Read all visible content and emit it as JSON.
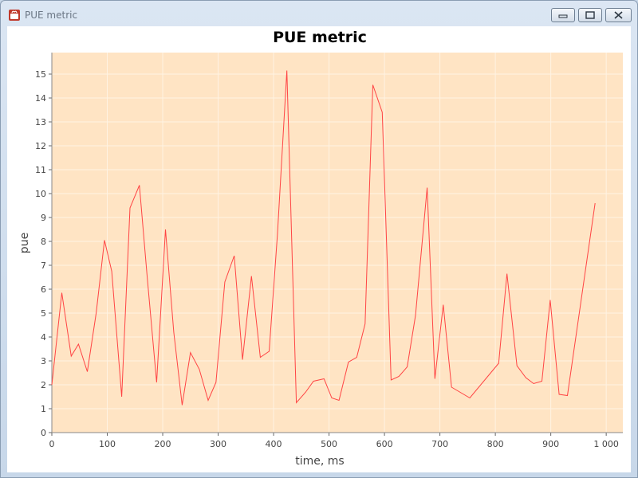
{
  "window": {
    "title": "PUE metric",
    "accent": "#c9d9ea"
  },
  "chart_data": {
    "type": "line",
    "title": "PUE metric",
    "xlabel": "time, ms",
    "ylabel": "pue",
    "xlim": [
      0,
      1030
    ],
    "ylim": [
      0,
      15.9
    ],
    "x_ticks": [
      0,
      100,
      200,
      300,
      400,
      500,
      600,
      700,
      800,
      900,
      1000
    ],
    "x_tick_labels": [
      "0",
      "100",
      "200",
      "300",
      "400",
      "500",
      "600",
      "700",
      "800",
      "900",
      "1 000"
    ],
    "y_ticks": [
      0,
      1,
      2,
      3,
      4,
      5,
      6,
      7,
      8,
      9,
      10,
      11,
      12,
      13,
      14,
      15
    ],
    "y_tick_labels": [
      "0",
      "1",
      "2",
      "3",
      "4",
      "5",
      "6",
      "7",
      "8",
      "9",
      "10",
      "11",
      "12",
      "13",
      "14",
      "15"
    ],
    "grid": true,
    "plot_background": "#ffe4c4",
    "line_color": "#ff4444",
    "series": [
      {
        "x": [
          0,
          18,
          35,
          48,
          64,
          80,
          95,
          108,
          126,
          141,
          158,
          172,
          189,
          205,
          220,
          235,
          250,
          266,
          282,
          296,
          312,
          329,
          344,
          360,
          376,
          392,
          407,
          424,
          441,
          458,
          472,
          491,
          505,
          518,
          535,
          550,
          565,
          579,
          596,
          612,
          626,
          641,
          656,
          677,
          691,
          706,
          721,
          754,
          806,
          821,
          839,
          855,
          869,
          884,
          899,
          915,
          930,
          980
        ],
        "y": [
          2.0,
          5.85,
          3.2,
          3.7,
          2.55,
          5.0,
          8.05,
          6.75,
          1.5,
          9.4,
          10.35,
          6.5,
          2.1,
          8.5,
          4.2,
          1.15,
          3.35,
          2.65,
          1.35,
          2.1,
          6.3,
          7.4,
          3.05,
          6.55,
          3.15,
          3.4,
          8.3,
          15.15,
          1.25,
          1.7,
          2.15,
          2.25,
          1.45,
          1.35,
          2.95,
          3.15,
          4.55,
          14.55,
          13.4,
          2.2,
          2.35,
          2.75,
          4.9,
          10.25,
          2.25,
          5.35,
          1.9,
          1.45,
          2.9,
          6.65,
          2.8,
          2.3,
          2.05,
          2.15,
          5.55,
          1.6,
          1.55,
          9.6
        ]
      }
    ]
  }
}
